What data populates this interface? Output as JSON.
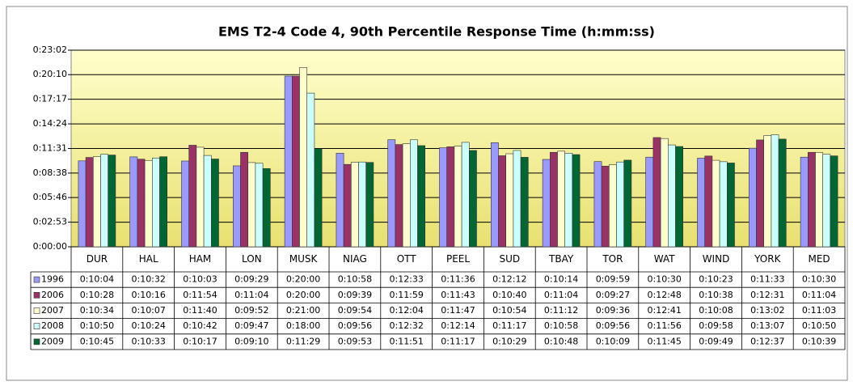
{
  "chart_data": {
    "type": "bar",
    "title": "EMS T2-4 Code 4, 90th Percentile Response Time (h:mm:ss)",
    "categories": [
      "DUR",
      "HAL",
      "HAM",
      "LON",
      "MUSK",
      "NIAG",
      "OTT",
      "PEEL",
      "SUD",
      "TBAY",
      "TOR",
      "WAT",
      "WIND",
      "YORK",
      "MED"
    ],
    "ylim": [
      0,
      1382
    ],
    "yticks": [
      {
        "value": 0,
        "label": "0:00:00"
      },
      {
        "value": 173,
        "label": "0:02:53"
      },
      {
        "value": 346,
        "label": "0:05:46"
      },
      {
        "value": 518,
        "label": "0:08:38"
      },
      {
        "value": 691,
        "label": "0:11:31"
      },
      {
        "value": 864,
        "label": "0:14:24"
      },
      {
        "value": 1037,
        "label": "0:17:17"
      },
      {
        "value": 1210,
        "label": "0:20:10"
      },
      {
        "value": 1382,
        "label": "0:23:02"
      }
    ],
    "grid": true,
    "series": [
      {
        "name": "1996",
        "color": "#9999ff",
        "values": [
          604,
          632,
          603,
          569,
          1200,
          658,
          753,
          696,
          732,
          614,
          599,
          630,
          623,
          693,
          630
        ],
        "value_labels": [
          "0:10:04",
          "0:10:32",
          "0:10:03",
          "0:09:29",
          "0:20:00",
          "0:10:58",
          "0:12:33",
          "0:11:36",
          "0:12:12",
          "0:10:14",
          "0:09:59",
          "0:10:30",
          "0:10:23",
          "0:11:33",
          "0:10:30"
        ]
      },
      {
        "name": "2006",
        "color": "#993366",
        "values": [
          628,
          616,
          714,
          664,
          1200,
          579,
          719,
          703,
          640,
          664,
          567,
          768,
          638,
          751,
          664
        ],
        "value_labels": [
          "0:10:28",
          "0:10:16",
          "0:11:54",
          "0:11:04",
          "0:20:00",
          "0:09:39",
          "0:11:59",
          "0:11:43",
          "0:10:40",
          "0:11:04",
          "0:09:27",
          "0:12:48",
          "0:10:38",
          "0:12:31",
          "0:11:04"
        ]
      },
      {
        "name": "2007",
        "color": "#ffffcc",
        "values": [
          634,
          607,
          700,
          592,
          1260,
          594,
          724,
          707,
          654,
          672,
          576,
          761,
          608,
          782,
          663
        ],
        "value_labels": [
          "0:10:34",
          "0:10:07",
          "0:11:40",
          "0:09:52",
          "0:21:00",
          "0:09:54",
          "0:12:04",
          "0:11:47",
          "0:10:54",
          "0:11:12",
          "0:09:36",
          "0:12:41",
          "0:10:08",
          "0:13:02",
          "0:11:03"
        ]
      },
      {
        "name": "2008",
        "color": "#ccffff",
        "values": [
          650,
          624,
          642,
          587,
          1080,
          596,
          752,
          734,
          677,
          658,
          596,
          716,
          598,
          787,
          650
        ],
        "value_labels": [
          "0:10:50",
          "0:10:24",
          "0:10:42",
          "0:09:47",
          "0:18:00",
          "0:09:56",
          "0:12:32",
          "0:12:14",
          "0:11:17",
          "0:10:58",
          "0:09:56",
          "0:11:56",
          "0:09:58",
          "0:13:07",
          "0:10:50"
        ]
      },
      {
        "name": "2009",
        "color": "#006633",
        "values": [
          645,
          633,
          617,
          550,
          689,
          593,
          711,
          677,
          629,
          648,
          609,
          705,
          589,
          757,
          639
        ],
        "value_labels": [
          "0:10:45",
          "0:10:33",
          "0:10:17",
          "0:09:10",
          "0:11:29",
          "0:09:53",
          "0:11:51",
          "0:11:17",
          "0:10:29",
          "0:10:48",
          "0:10:09",
          "0:11:45",
          "0:09:49",
          "0:12:37",
          "0:10:39"
        ]
      }
    ]
  }
}
